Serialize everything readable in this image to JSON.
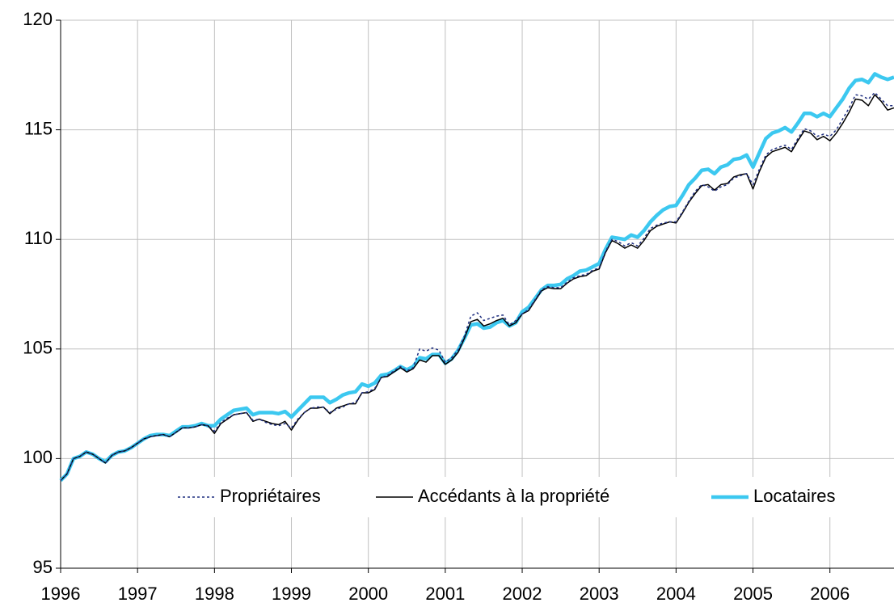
{
  "chart_data": {
    "type": "line",
    "x": [
      1996,
      1996.083,
      1996.167,
      1996.25,
      1996.333,
      1996.417,
      1996.5,
      1996.583,
      1996.667,
      1996.75,
      1996.833,
      1996.917,
      1997,
      1997.083,
      1997.167,
      1997.25,
      1997.333,
      1997.417,
      1997.5,
      1997.583,
      1997.667,
      1997.75,
      1997.833,
      1997.917,
      1998,
      1998.083,
      1998.167,
      1998.25,
      1998.333,
      1998.417,
      1998.5,
      1998.583,
      1998.667,
      1998.75,
      1998.833,
      1998.917,
      1999,
      1999.083,
      1999.167,
      1999.25,
      1999.333,
      1999.417,
      1999.5,
      1999.583,
      1999.667,
      1999.75,
      1999.833,
      1999.917,
      2000,
      2000.083,
      2000.167,
      2000.25,
      2000.333,
      2000.417,
      2000.5,
      2000.583,
      2000.667,
      2000.75,
      2000.833,
      2000.917,
      2001,
      2001.083,
      2001.167,
      2001.25,
      2001.333,
      2001.417,
      2001.5,
      2001.583,
      2001.667,
      2001.75,
      2001.833,
      2001.917,
      2002,
      2002.083,
      2002.167,
      2002.25,
      2002.333,
      2002.417,
      2002.5,
      2002.583,
      2002.667,
      2002.75,
      2002.833,
      2002.917,
      2003,
      2003.083,
      2003.167,
      2003.25,
      2003.333,
      2003.417,
      2003.5,
      2003.583,
      2003.667,
      2003.75,
      2003.833,
      2003.917,
      2004,
      2004.083,
      2004.167,
      2004.25,
      2004.333,
      2004.417,
      2004.5,
      2004.583,
      2004.667,
      2004.75,
      2004.833,
      2004.917,
      2005,
      2005.083,
      2005.167,
      2005.25,
      2005.333,
      2005.417,
      2005.5,
      2005.583,
      2005.667,
      2005.75,
      2005.833,
      2005.917,
      2006,
      2006.083,
      2006.167,
      2006.25,
      2006.333,
      2006.417,
      2006.5,
      2006.583,
      2006.667,
      2006.75,
      2006.833
    ],
    "series": [
      {
        "name": "Propriétaires",
        "color": "#1f2f80",
        "style": "dotted",
        "values": [
          99.0,
          99.3,
          100.0,
          100.1,
          100.3,
          100.2,
          100.0,
          99.8,
          100.15,
          100.3,
          100.35,
          100.5,
          100.7,
          100.9,
          101.0,
          101.05,
          101.1,
          101.0,
          101.2,
          101.4,
          101.4,
          101.45,
          101.55,
          101.5,
          101.25,
          101.65,
          101.85,
          102.0,
          102.05,
          102.1,
          101.75,
          101.8,
          101.65,
          101.55,
          101.5,
          101.6,
          101.4,
          101.8,
          102.1,
          102.3,
          102.35,
          102.35,
          102.1,
          102.25,
          102.35,
          102.5,
          102.55,
          103.0,
          103.05,
          103.2,
          103.7,
          103.8,
          104.0,
          104.2,
          104.0,
          104.15,
          105.0,
          104.9,
          105.05,
          104.95,
          104.4,
          104.6,
          104.95,
          105.6,
          106.5,
          106.65,
          106.3,
          106.4,
          106.5,
          106.55,
          106.1,
          106.3,
          106.6,
          106.8,
          107.25,
          107.7,
          107.85,
          107.8,
          107.8,
          108.05,
          108.25,
          108.35,
          108.4,
          108.6,
          108.7,
          109.45,
          110.0,
          109.9,
          109.7,
          109.85,
          109.7,
          110.05,
          110.5,
          110.65,
          110.75,
          110.8,
          110.8,
          111.25,
          111.75,
          112.2,
          112.5,
          112.4,
          112.2,
          112.4,
          112.5,
          112.8,
          112.9,
          113.0,
          112.5,
          113.2,
          113.85,
          114.1,
          114.2,
          114.3,
          114.1,
          114.6,
          115.05,
          114.95,
          114.7,
          114.8,
          114.7,
          115.0,
          115.5,
          116.0,
          116.6,
          116.55,
          116.4,
          116.7,
          116.4,
          116.1,
          116.1
        ]
      },
      {
        "name": "Accédants à la propriété",
        "color": "#000000",
        "style": "solid",
        "values": [
          99.0,
          99.3,
          100.0,
          100.1,
          100.3,
          100.2,
          100.0,
          99.8,
          100.15,
          100.3,
          100.35,
          100.5,
          100.7,
          100.9,
          101.0,
          101.05,
          101.1,
          101.0,
          101.2,
          101.4,
          101.4,
          101.45,
          101.55,
          101.5,
          101.15,
          101.6,
          101.8,
          102.0,
          102.05,
          102.1,
          101.7,
          101.8,
          101.7,
          101.6,
          101.55,
          101.7,
          101.3,
          101.75,
          102.1,
          102.3,
          102.3,
          102.35,
          102.05,
          102.3,
          102.4,
          102.5,
          102.5,
          103.0,
          103.0,
          103.15,
          103.7,
          103.75,
          103.95,
          104.15,
          103.95,
          104.1,
          104.5,
          104.4,
          104.7,
          104.7,
          104.3,
          104.5,
          104.85,
          105.5,
          106.25,
          106.35,
          106.05,
          106.15,
          106.3,
          106.4,
          106.05,
          106.2,
          106.6,
          106.75,
          107.2,
          107.65,
          107.8,
          107.75,
          107.75,
          108.0,
          108.2,
          108.3,
          108.35,
          108.55,
          108.65,
          109.4,
          109.95,
          109.8,
          109.6,
          109.75,
          109.6,
          109.95,
          110.4,
          110.6,
          110.7,
          110.8,
          110.75,
          111.2,
          111.7,
          112.1,
          112.45,
          112.5,
          112.25,
          112.5,
          112.55,
          112.85,
          112.95,
          113.0,
          112.3,
          113.1,
          113.75,
          114.0,
          114.1,
          114.2,
          114.0,
          114.5,
          114.95,
          114.85,
          114.55,
          114.7,
          114.5,
          114.85,
          115.3,
          115.8,
          116.4,
          116.35,
          116.1,
          116.6,
          116.3,
          115.9,
          116.0
        ]
      },
      {
        "name": "Locataires",
        "color": "#3cc8f0",
        "style": "thick",
        "values": [
          99.0,
          99.3,
          100.0,
          100.1,
          100.3,
          100.2,
          100.0,
          99.85,
          100.15,
          100.3,
          100.35,
          100.5,
          100.7,
          100.9,
          101.05,
          101.1,
          101.1,
          101.05,
          101.25,
          101.45,
          101.45,
          101.5,
          101.6,
          101.5,
          101.5,
          101.8,
          102.0,
          102.2,
          102.25,
          102.3,
          102.0,
          102.1,
          102.1,
          102.1,
          102.05,
          102.15,
          101.9,
          102.2,
          102.5,
          102.8,
          102.8,
          102.8,
          102.55,
          102.7,
          102.9,
          103.0,
          103.05,
          103.4,
          103.3,
          103.45,
          103.8,
          103.85,
          104.0,
          104.2,
          104.05,
          104.2,
          104.6,
          104.55,
          104.75,
          104.75,
          104.35,
          104.55,
          104.95,
          105.5,
          106.1,
          106.15,
          105.95,
          106.0,
          106.2,
          106.3,
          106.05,
          106.2,
          106.7,
          106.9,
          107.3,
          107.7,
          107.9,
          107.9,
          107.95,
          108.2,
          108.35,
          108.55,
          108.6,
          108.75,
          108.9,
          109.55,
          110.1,
          110.05,
          110.0,
          110.2,
          110.1,
          110.4,
          110.8,
          111.1,
          111.35,
          111.5,
          111.55,
          112.0,
          112.5,
          112.8,
          113.15,
          113.2,
          113.0,
          113.3,
          113.4,
          113.65,
          113.7,
          113.85,
          113.3,
          113.95,
          114.6,
          114.85,
          114.95,
          115.1,
          114.9,
          115.3,
          115.75,
          115.75,
          115.6,
          115.75,
          115.6,
          116.0,
          116.4,
          116.9,
          117.25,
          117.3,
          117.15,
          117.55,
          117.4,
          117.3,
          117.4
        ]
      }
    ],
    "xlim": [
      1996,
      2006.833
    ],
    "xticks": [
      1996,
      1997,
      1998,
      1999,
      2000,
      2001,
      2002,
      2003,
      2004,
      2005,
      2006
    ],
    "ylim": [
      95,
      120
    ],
    "yticks": [
      95,
      100,
      105,
      110,
      115,
      120
    ],
    "grid": true,
    "legend": "bottom"
  }
}
